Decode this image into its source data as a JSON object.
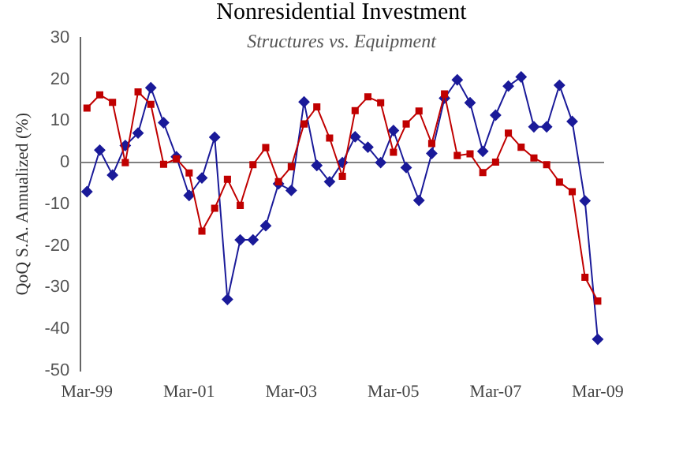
{
  "chart_data": {
    "type": "line",
    "title": "Nonresidential Investment",
    "subtitle": "Structures vs. Equipment",
    "ylabel": "QoQ S.A. Annualized (%)",
    "categories": [
      "Mar-99",
      null,
      null,
      null,
      null,
      null,
      null,
      null,
      "Mar-01",
      null,
      null,
      null,
      null,
      null,
      null,
      null,
      "Mar-03",
      null,
      null,
      null,
      null,
      null,
      null,
      null,
      "Mar-05",
      null,
      null,
      null,
      null,
      null,
      null,
      null,
      "Mar-07",
      null,
      null,
      null,
      null,
      null,
      null,
      null,
      "Mar-09"
    ],
    "series": [
      {
        "color": "#1a1a99",
        "marker": "diamond",
        "values": [
          -7,
          3,
          -3,
          4.1,
          7.1,
          18,
          9.6,
          1.4,
          -7.9,
          -3.7,
          6.1,
          -32.9,
          -18.6,
          -18.6,
          -15.2,
          -5.1,
          -6.7,
          14.6,
          -0.7,
          -4.6,
          0,
          6.2,
          3.7,
          0,
          7.7,
          -1.2,
          -9.1,
          2.2,
          15.5,
          19.9,
          14.4,
          2.7,
          11.4,
          18.4,
          20.6,
          8.6,
          8.6,
          18.6,
          9.9,
          -9.2,
          -42.5
        ]
      },
      {
        "color": "#c00000",
        "marker": "square",
        "values": [
          13.1,
          16.3,
          14.5,
          0,
          17,
          14,
          -0.4,
          0.9,
          -2.5,
          -16.5,
          -11,
          -4,
          -10.3,
          -0.5,
          3.6,
          -4.6,
          -1,
          9.3,
          13.4,
          5.9,
          -3.3,
          12.5,
          15.8,
          14.4,
          2.5,
          9.3,
          12.4,
          4.6,
          16.5,
          1.7,
          2.1,
          -2.4,
          0.1,
          7.1,
          3.7,
          1.1,
          -0.5,
          -4.7,
          -7,
          -27.6,
          -33.3
        ]
      }
    ],
    "ylim": [
      -50,
      30
    ],
    "yticks": [
      -50,
      -40,
      -30,
      -20,
      -10,
      0,
      10,
      20,
      30
    ],
    "ref_lines": [
      {
        "axis": "y",
        "value": 0,
        "color": "#808080"
      }
    ],
    "grid": false,
    "legend": false,
    "line_style": "solid"
  }
}
